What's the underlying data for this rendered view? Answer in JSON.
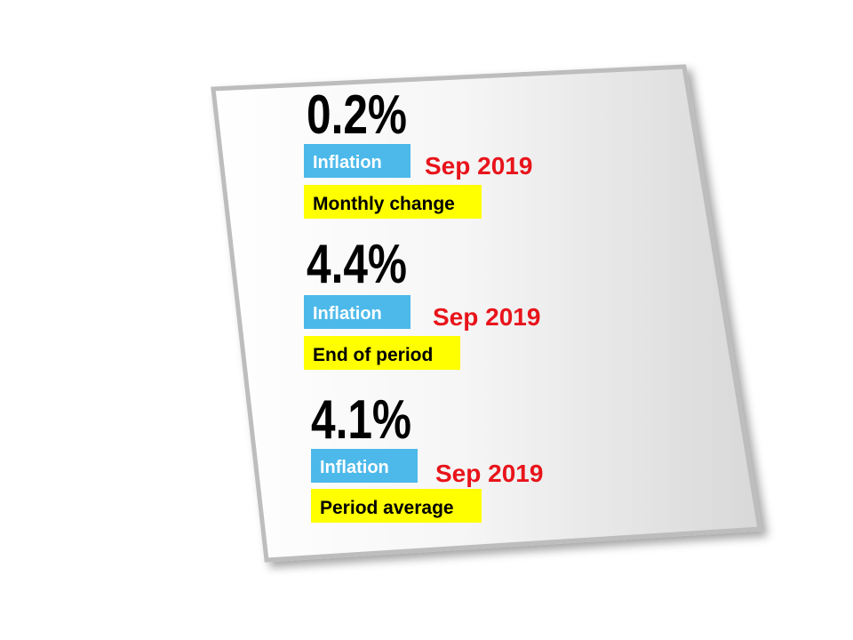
{
  "items": [
    {
      "value": "0.2%",
      "label": "Inflation",
      "date": "Sep 2019",
      "description": "Monthly change"
    },
    {
      "value": "4.4%",
      "label": "Inflation",
      "date": "Sep 2019",
      "description": "End of period"
    },
    {
      "value": "4.1%",
      "label": "Inflation",
      "date": "Sep 2019",
      "description": "Period average"
    }
  ]
}
